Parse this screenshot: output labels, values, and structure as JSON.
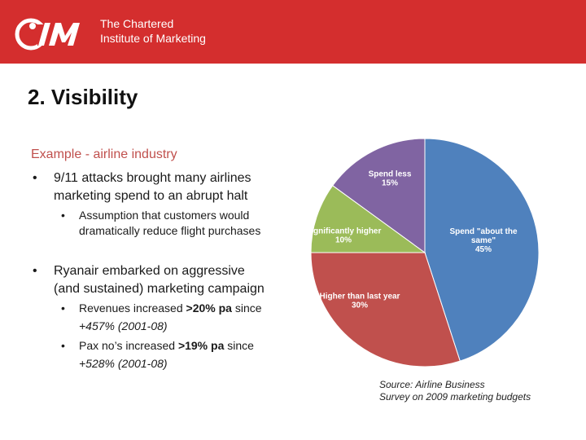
{
  "header": {
    "org_line1": "The Chartered",
    "org_line2": "Institute of Marketing",
    "logo_text": "CIM",
    "background": "#d42e2e"
  },
  "title": "2. Visibility",
  "subtitle": "Example - airline industry",
  "bullets": [
    {
      "mark": "•",
      "text": "9/11 attacks brought many airlines\nmarketing spend to an abrupt halt"
    },
    {
      "mark": "•",
      "text": "Ryanair embarked on aggressive\n(and sustained) marketing campaign"
    }
  ],
  "subbullets": {
    "assumption": {
      "mark": "•",
      "line1": "Assumption that customers would",
      "line2": "dramatically reduce flight purchases"
    },
    "revenues": {
      "mark": "•",
      "pre": "Revenues increased ",
      "bold": ">20% pa",
      "post": " since",
      "line2": "+457% (2001-08)"
    },
    "pax": {
      "mark": "•",
      "pre": "Pax no’s increased ",
      "bold": ">19% pa",
      "post": " since",
      "line2": "+528% (2001-08)"
    }
  },
  "source": {
    "line1": "Source: Airline Business",
    "line2": "Survey on 2009 marketing budgets"
  },
  "chart_data": {
    "type": "pie",
    "slices": [
      {
        "label": "Spend \"about the same\"",
        "label_line1": "Spend \"about the",
        "label_line2": "same\"",
        "value": 45,
        "value_label": "45%",
        "color": "#4f81bd"
      },
      {
        "label": "Higher than last year",
        "label_line1": "Higher than last year",
        "label_line2": "",
        "value": 30,
        "value_label": "30%",
        "color": "#c0504d"
      },
      {
        "label": "Significantly higher",
        "label_line1": "Significantly higher",
        "label_line2": "",
        "value": 10,
        "value_label": "10%",
        "color": "#9bbb59"
      },
      {
        "label": "Spend less",
        "label_line1": "Spend less",
        "label_line2": "",
        "value": 15,
        "value_label": "15%",
        "color": "#8064a2"
      }
    ],
    "start": "12 o'clock",
    "direction": "clockwise"
  }
}
